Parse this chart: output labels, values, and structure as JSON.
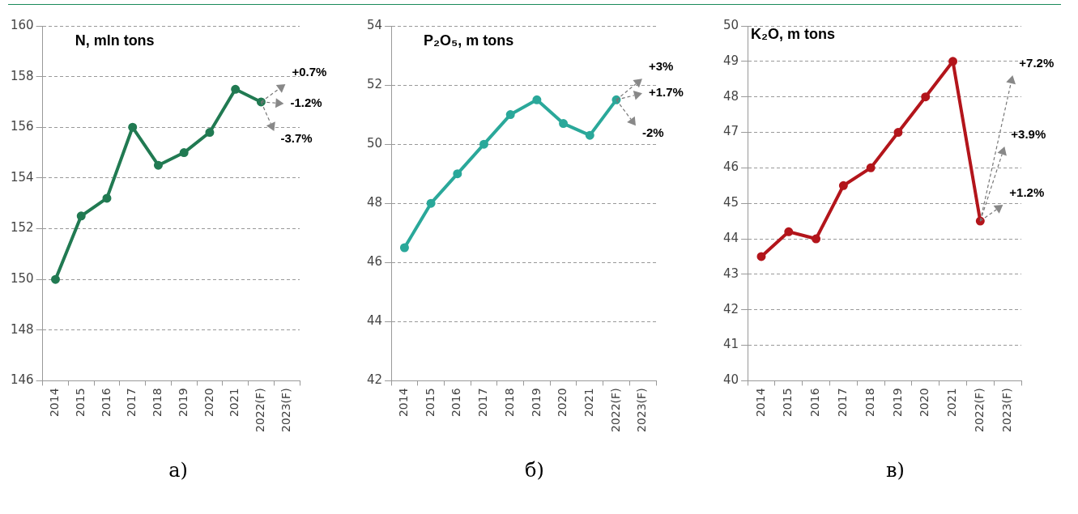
{
  "chart_data": [
    {
      "type": "line",
      "title": "N, mln tons",
      "categories": [
        "2014",
        "2015",
        "2016",
        "2017",
        "2018",
        "2019",
        "2020",
        "2021",
        "2022(F)",
        "2023(F)"
      ],
      "series": [
        {
          "color": "#217a52",
          "values": [
            150,
            152.5,
            153.2,
            156,
            154.5,
            155,
            155.8,
            157.5,
            157,
            null
          ]
        }
      ],
      "ylim": [
        146,
        160
      ],
      "yticks": [
        146,
        148,
        150,
        152,
        154,
        156,
        158,
        160
      ],
      "grid": "y",
      "marker": "circle",
      "line_style": "solid",
      "legend": false,
      "annotations": [
        "+0.7%",
        "-1.2%",
        "-3.7%",
        "а)"
      ]
    },
    {
      "type": "line",
      "title": "P₂O₅, m tons",
      "categories": [
        "2014",
        "2015",
        "2016",
        "2017",
        "2018",
        "2019",
        "2020",
        "2021",
        "2022(F)",
        "2023(F)"
      ],
      "series": [
        {
          "color": "#2aa89a",
          "values": [
            46.5,
            48,
            49,
            50,
            51,
            51.5,
            50.7,
            50.3,
            51.5,
            null
          ]
        }
      ],
      "ylim": [
        42,
        54
      ],
      "yticks": [
        42,
        44,
        46,
        48,
        50,
        52,
        54
      ],
      "grid": "y",
      "marker": "circle",
      "line_style": "solid",
      "legend": false,
      "annotations": [
        "+3%",
        "+1.7%",
        "-2%",
        "б)"
      ]
    },
    {
      "type": "line",
      "title": "K₂O, m tons",
      "categories": [
        "2014",
        "2015",
        "2016",
        "2017",
        "2018",
        "2019",
        "2020",
        "2021",
        "2022(F)",
        "2023(F)"
      ],
      "series": [
        {
          "color": "#b3151b",
          "values": [
            43.5,
            44.2,
            44,
            45.5,
            46,
            47,
            48,
            49,
            44.5,
            null
          ]
        }
      ],
      "ylim": [
        40,
        50
      ],
      "yticks": [
        40,
        41,
        42,
        43,
        44,
        45,
        46,
        47,
        48,
        49,
        50
      ],
      "grid": "y",
      "marker": "circle",
      "line_style": "solid",
      "legend": false,
      "annotations": [
        "+7.2%",
        "+3.9%",
        "+1.2%",
        "в)"
      ]
    }
  ]
}
